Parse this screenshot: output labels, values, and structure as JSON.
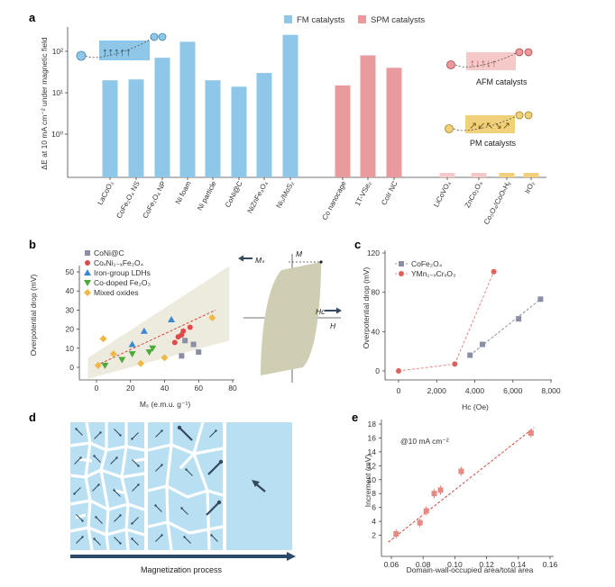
{
  "colors": {
    "fm": "#8ec7e8",
    "spm": "#e89a9d",
    "pm_bar": "#f0d07a",
    "afm_bar": "#f6c9c9",
    "grid": "#dddddd",
    "axis": "#444444",
    "conimn": "#e04a4a",
    "coni": "#8a8fa6",
    "ldh": "#3d86d6",
    "codoped": "#4caa3a",
    "mixed": "#f0b845",
    "band": "#ecebdd",
    "hyst": "#cfcdb2",
    "domain_bg": "#b9e0f2",
    "arrow": "#34495e"
  },
  "panel_labels": {
    "a": "a",
    "b": "b",
    "c": "c",
    "d": "d",
    "e": "e"
  },
  "chart_data": [
    {
      "id": "a",
      "type": "bar",
      "yscale": "log",
      "ylim": [
        0.3,
        300
      ],
      "ylabel": "ΔE at 10 mA cm⁻² under magnetic field",
      "yticks": [
        "10²",
        "10¹",
        "10⁰"
      ],
      "legend": [
        "FM catalysts",
        "SPM catalysts"
      ],
      "categories": [
        "LaCoO₃",
        "CoFe₂O₄ NS",
        "CoFe₂O₄ NP",
        "Ni foam",
        "Ni particle",
        "CoNi@C",
        "NiZnFe₄O₄",
        "Ni₃/MoS₂",
        "Co nanocage",
        "1T-VSe₂",
        "CoIr NC",
        "LiCoVO₄",
        "ZnCo₂O₄",
        "Co₃O₄/CoOₕHᵧ",
        "IrO₂"
      ],
      "values": [
        20,
        21,
        70,
        170,
        20,
        14,
        30,
        250,
        15,
        80,
        40,
        0,
        0,
        0,
        0
      ],
      "groups": [
        "FM",
        "FM",
        "FM",
        "FM",
        "FM",
        "FM",
        "FM",
        "FM",
        "SPM",
        "SPM",
        "SPM",
        "AFM",
        "AFM",
        "PM",
        "PM"
      ],
      "annotations": [
        "AFM catalysts",
        "PM catalysts"
      ]
    },
    {
      "id": "b",
      "type": "scatter",
      "xlabel": "Mₛ (e.m.u. g⁻¹)",
      "ylabel": "Overpotential drop (mV)",
      "xlim": [
        -10,
        80
      ],
      "ylim": [
        -5,
        55
      ],
      "xticks": [
        "0",
        "20",
        "40",
        "60",
        "80"
      ],
      "yticks": [
        "0",
        "10",
        "20",
        "30",
        "40",
        "50"
      ],
      "series": [
        {
          "name": "CoNi@C",
          "marker": "square",
          "points": [
            [
              50,
              6
            ],
            [
              52,
              14
            ],
            [
              57,
              12
            ],
            [
              60,
              8
            ]
          ]
        },
        {
          "name": "CoₓNi₁₋ₓFe₂O₄",
          "marker": "circle",
          "points": [
            [
              46,
              13
            ],
            [
              48,
              16
            ],
            [
              50,
              17
            ],
            [
              51,
              19
            ],
            [
              55,
              21
            ]
          ]
        },
        {
          "name": "Iron-group LDHs",
          "marker": "triangle-up",
          "points": [
            [
              21,
              12
            ],
            [
              28,
              19
            ],
            [
              44,
              25
            ]
          ]
        },
        {
          "name": "Co-doped Fe₂O₃",
          "marker": "triangle-down",
          "points": [
            [
              5,
              1
            ],
            [
              15,
              4
            ],
            [
              21,
              7
            ],
            [
              31,
              8
            ],
            [
              33,
              10
            ]
          ]
        },
        {
          "name": "Mixed oxides",
          "marker": "diamond",
          "points": [
            [
              1,
              1
            ],
            [
              4,
              15
            ],
            [
              10,
              7
            ],
            [
              26,
              2
            ],
            [
              40,
              5
            ],
            [
              68,
              26
            ]
          ]
        }
      ],
      "fit": [
        [
          0,
          1
        ],
        [
          70,
          30
        ]
      ]
    },
    {
      "id": "b_inset",
      "type": "hysteresis",
      "labels": {
        "m": "M",
        "ms": "Mₛ",
        "hc": "Hᴄ",
        "h": "H"
      }
    },
    {
      "id": "c",
      "type": "scatter",
      "xlabel": "Hᴄ (Oe)",
      "ylabel": "Overpotential drop (mV)",
      "xlim": [
        0,
        8000
      ],
      "ylim": [
        0,
        120
      ],
      "xticks": [
        "0",
        "2,000",
        "4,000",
        "6,000",
        "8,000"
      ],
      "yticks": [
        "0",
        "40",
        "80",
        "120"
      ],
      "series": [
        {
          "name": "CoFe₂O₄",
          "marker": "square",
          "points": [
            [
              3750,
              16
            ],
            [
              4400,
              27
            ],
            [
              6300,
              53
            ],
            [
              7450,
              73
            ]
          ]
        },
        {
          "name": "YMn₁₋ₓCrₓO₃",
          "marker": "circle",
          "points": [
            [
              0,
              0
            ],
            [
              2950,
              7
            ],
            [
              5000,
              101
            ]
          ]
        }
      ]
    },
    {
      "id": "d",
      "type": "diagram",
      "caption": "Magnetization process"
    },
    {
      "id": "e",
      "type": "scatter",
      "annotation": "@10 mA cm⁻²",
      "xlabel": "Domain-wall-occupied area/total area",
      "ylabel": "Increment (mV)",
      "xlim": [
        0.055,
        0.16
      ],
      "ylim": [
        0,
        18
      ],
      "xticks": [
        "0.06",
        "0.08",
        "0.10",
        "0.12",
        "0.14",
        "0.16"
      ],
      "yticks": [
        "2",
        "4",
        "6",
        "8",
        "10",
        "12",
        "14",
        "16",
        "18"
      ],
      "series": [
        {
          "name": "Increment",
          "marker": "square",
          "points": [
            [
              0.063,
              2.2
            ],
            [
              0.078,
              3.8
            ],
            [
              0.082,
              5.5
            ],
            [
              0.087,
              8.0
            ],
            [
              0.091,
              8.5
            ],
            [
              0.104,
              11.2
            ],
            [
              0.148,
              16.7
            ]
          ]
        }
      ],
      "fit": [
        [
          0.058,
          1.0
        ],
        [
          0.15,
          17.5
        ]
      ]
    }
  ]
}
